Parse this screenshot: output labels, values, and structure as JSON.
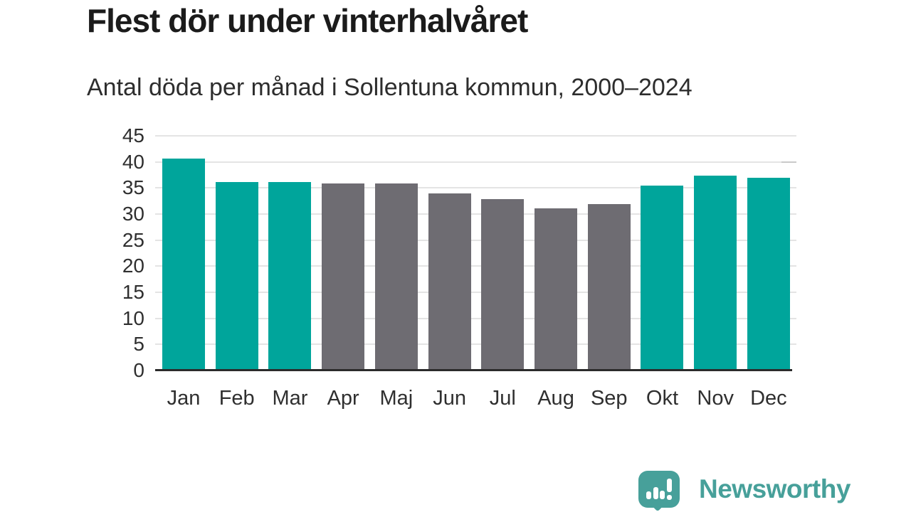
{
  "chart_data": {
    "type": "bar",
    "title": "Flest dör under vinterhalvåret",
    "subtitle": "Antal döda per månad i Sollentuna kommun, 2000–2024",
    "categories": [
      "Jan",
      "Feb",
      "Mar",
      "Apr",
      "Maj",
      "Jun",
      "Jul",
      "Aug",
      "Sep",
      "Okt",
      "Nov",
      "Dec"
    ],
    "values": [
      40.6,
      36.2,
      36.2,
      35.8,
      35.8,
      33.9,
      32.9,
      31.1,
      31.9,
      35.4,
      37.4,
      37.0
    ],
    "bar_color_keys": [
      "highlight",
      "highlight",
      "highlight",
      "muted",
      "muted",
      "muted",
      "muted",
      "muted",
      "muted",
      "highlight",
      "highlight",
      "highlight"
    ],
    "colors": {
      "highlight": "#00a59b",
      "muted": "#6e6c72"
    },
    "xlabel": "",
    "ylabel": "",
    "ylim": [
      0,
      45
    ],
    "yticks": [
      0,
      5,
      10,
      15,
      20,
      25,
      30,
      35,
      40,
      45
    ],
    "grid": true,
    "legend": "none"
  },
  "branding": {
    "logo_text": "Newsworthy",
    "logo_icon": "newsworthy-speech-bubble-bar-chart-icon",
    "color": "#47a09a"
  }
}
